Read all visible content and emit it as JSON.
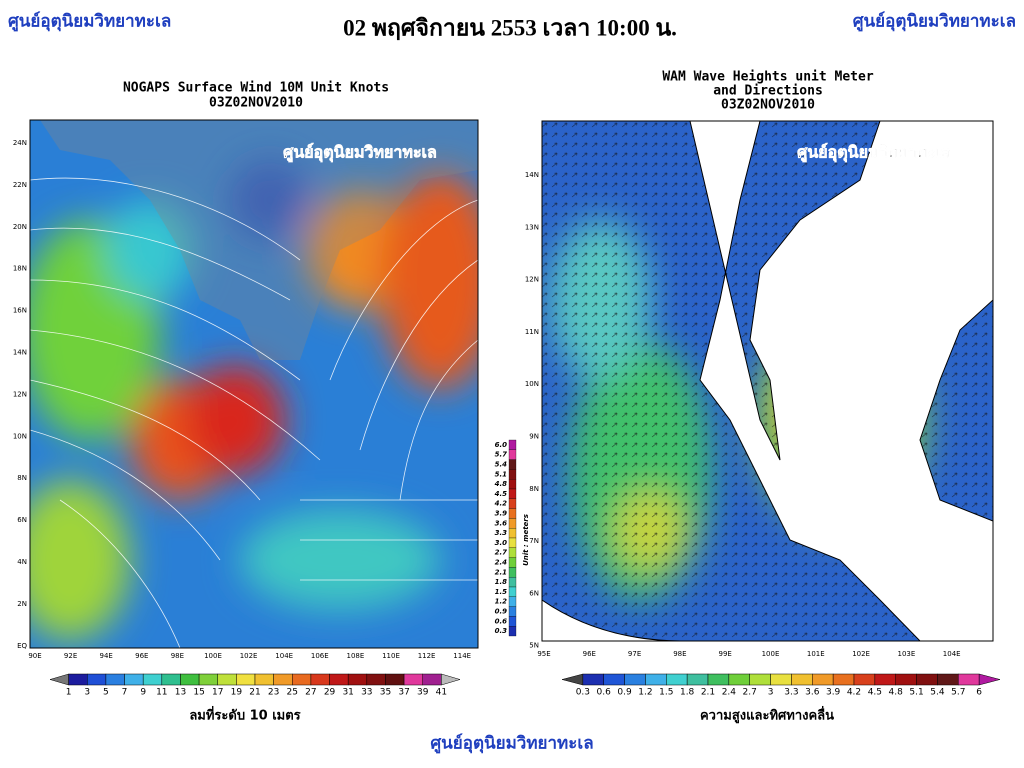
{
  "header": {
    "left": "ศูนย์อุตุนิยมวิทยาทะเล",
    "title": "02 พฤศจิกายน 2553 เวลา 10:00 น.",
    "right": "ศูนย์อุตุนิยมวิทยาทะเล"
  },
  "left_map": {
    "title": "NOGAPS Surface Wind 10M Unit Knots",
    "time": "03Z02NOV2010",
    "watermark": "ศูนย์อุตุนิยมวิทยาทะเล",
    "y_labels": [
      "24N",
      "22N",
      "20N",
      "18N",
      "16N",
      "14N",
      "12N",
      "10N",
      "8N",
      "6N",
      "4N",
      "2N",
      "EQ"
    ],
    "x_labels": [
      "90E",
      "92E",
      "94E",
      "96E",
      "98E",
      "100E",
      "102E",
      "104E",
      "106E",
      "108E",
      "110E",
      "112E",
      "114E"
    ],
    "colorbar_labels": [
      "1",
      "3",
      "5",
      "7",
      "9",
      "11",
      "13",
      "15",
      "17",
      "19",
      "21",
      "23",
      "25",
      "27",
      "29",
      "31",
      "33",
      "35",
      "37",
      "39",
      "41"
    ],
    "caption": "ลมที่ระดับ 10 เมตร",
    "side_colorbar_labels": [
      "6.0",
      "5.7",
      "5.4",
      "5.1",
      "4.8",
      "4.5",
      "4.2",
      "3.9",
      "3.6",
      "3.3",
      "3.0",
      "2.7",
      "2.4",
      "2.1",
      "1.8",
      "1.5",
      "1.2",
      "0.9",
      "0.6",
      "0.3"
    ],
    "side_colorbar_unit": "Unit : meters"
  },
  "right_map": {
    "title_lines": [
      "WAM Wave Heights unit Meter",
      "and Directions",
      "03Z02NOV2010"
    ],
    "watermark": "ศูนย์อุตุนิยมวิทยาทะเล",
    "y_labels": [
      "14N",
      "13N",
      "12N",
      "11N",
      "10N",
      "9N",
      "8N",
      "7N",
      "6N",
      "5N"
    ],
    "x_labels": [
      "95E",
      "96E",
      "97E",
      "98E",
      "99E",
      "100E",
      "101E",
      "102E",
      "103E",
      "104E"
    ],
    "colorbar_labels": [
      "0.3",
      "0.6",
      "0.9",
      "1.2",
      "1.5",
      "1.8",
      "2.1",
      "2.4",
      "2.7",
      "3",
      "3.3",
      "3.6",
      "3.9",
      "4.2",
      "4.5",
      "4.8",
      "5.1",
      "5.4",
      "5.7",
      "6"
    ],
    "caption": "ความสูงและทิศทางคลื่น"
  },
  "footer": "ศูนย์อุตุนิยมวิทยาทะเล"
}
